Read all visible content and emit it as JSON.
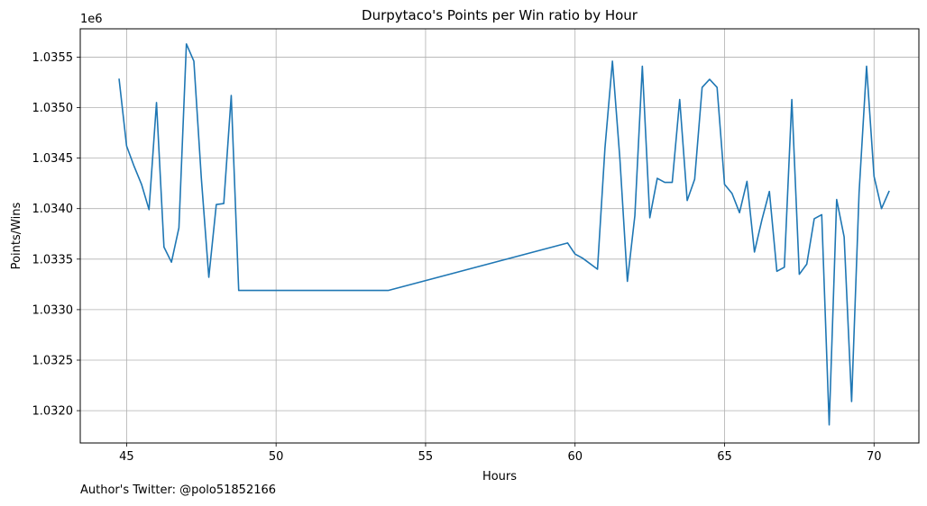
{
  "chart_data": {
    "type": "line",
    "title": "Durpytaco's Points per Win ratio by Hour",
    "xlabel": "Hours",
    "ylabel": "Points/Wins",
    "y_offset_label": "1e6",
    "grid": true,
    "xlim": [
      43.45,
      71.5
    ],
    "ylim": [
      1.03168,
      1.03578
    ],
    "x_ticks": [
      45,
      50,
      55,
      60,
      65,
      70
    ],
    "y_ticks": [
      1.032,
      1.0325,
      1.033,
      1.0335,
      1.034,
      1.0345,
      1.035,
      1.0355
    ],
    "y_tick_labels": [
      "1.0320",
      "1.0325",
      "1.0330",
      "1.0335",
      "1.0340",
      "1.0345",
      "1.0350",
      "1.0355"
    ],
    "series": [
      {
        "color": "#1f77b4",
        "x": [
          44.75,
          45.0,
          45.25,
          45.5,
          45.75,
          46.0,
          46.25,
          46.5,
          46.75,
          47.0,
          47.25,
          47.5,
          47.75,
          48.0,
          48.25,
          48.5,
          48.75,
          53.75,
          59.75,
          60.0,
          60.25,
          60.75,
          61.0,
          61.25,
          61.5,
          61.75,
          62.0,
          62.25,
          62.5,
          62.75,
          63.0,
          63.25,
          63.5,
          63.75,
          64.0,
          64.25,
          64.5,
          64.75,
          65.0,
          65.25,
          65.5,
          65.75,
          66.0,
          66.25,
          66.5,
          66.75,
          67.0,
          67.25,
          67.5,
          67.75,
          68.0,
          68.25,
          68.5,
          68.75,
          69.0,
          69.25,
          69.5,
          69.75,
          70.0,
          70.25,
          70.5
        ],
        "y": [
          1.03528,
          1.03462,
          1.03442,
          1.03424,
          1.03399,
          1.03505,
          1.03362,
          1.03347,
          1.03381,
          1.03563,
          1.03546,
          1.0343,
          1.03332,
          1.03404,
          1.03405,
          1.03512,
          1.03319,
          1.03319,
          1.03366,
          1.03355,
          1.03351,
          1.0334,
          1.0346,
          1.03546,
          1.03449,
          1.03328,
          1.03393,
          1.03541,
          1.03391,
          1.0343,
          1.03426,
          1.03426,
          1.03508,
          1.03408,
          1.03429,
          1.0352,
          1.03528,
          1.0352,
          1.03424,
          1.03415,
          1.03396,
          1.03427,
          1.03357,
          1.03389,
          1.03417,
          1.03338,
          1.03342,
          1.03508,
          1.03335,
          1.03345,
          1.0339,
          1.03394,
          1.03186,
          1.03409,
          1.03372,
          1.03209,
          1.03416,
          1.03541,
          1.03432,
          1.034,
          1.03417
        ]
      }
    ]
  },
  "footer": {
    "author_note": "Author's Twitter: @polo51852166"
  }
}
